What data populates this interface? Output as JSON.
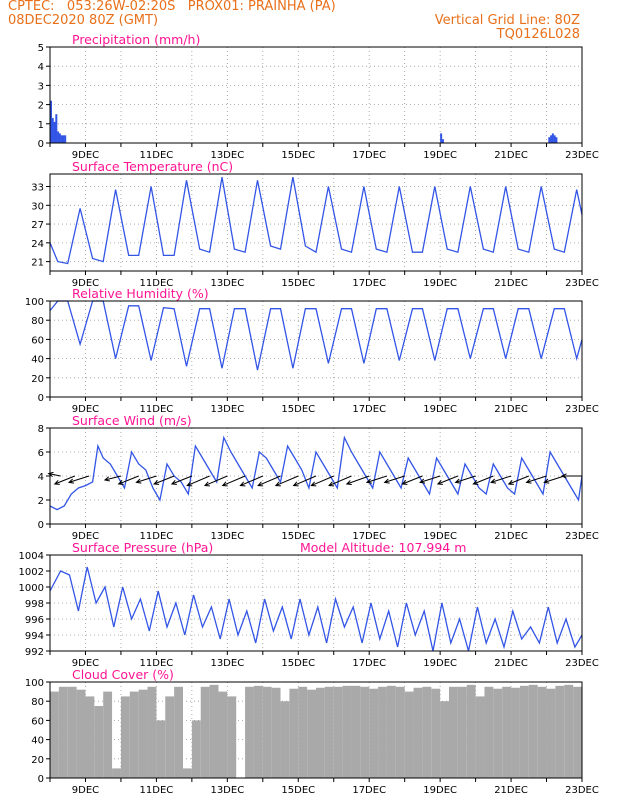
{
  "header": {
    "line1_left": "CPTEC:   053:26W-02:20S   PROX01: PRAINHA (PA)",
    "line2_left": "08DEC2020 80Z (GMT)",
    "line2_right": "Vertical Grid Line: 80Z",
    "line3_right": "TQ0126L028"
  },
  "colors": {
    "header": "#e8701a",
    "title": "#ff1493",
    "series": "#3355e6",
    "cloud": "#a9a9a9",
    "arrow": "#000000"
  },
  "x_ticks": [
    "9DEC",
    "11DEC",
    "13DEC",
    "15DEC",
    "17DEC",
    "19DEC",
    "21DEC",
    "23DEC"
  ],
  "chart_data": [
    {
      "id": "precip",
      "type": "bar",
      "title": "Precipitation (mm/h)",
      "ylim": [
        0,
        5
      ],
      "yticks": [
        "0",
        "1",
        "2",
        "3",
        "4",
        "5"
      ],
      "x_days": [
        8.0,
        8.05,
        8.1,
        8.15,
        8.2,
        8.25,
        8.3,
        8.35,
        8.4,
        19.0,
        19.05,
        22.05,
        22.1,
        22.15,
        22.2,
        22.25
      ],
      "values": [
        2.2,
        1.3,
        1.1,
        1.5,
        0.6,
        0.5,
        0.4,
        0.4,
        0.4,
        0.5,
        0.2,
        0.3,
        0.4,
        0.5,
        0.4,
        0.3
      ]
    },
    {
      "id": "temp",
      "type": "line",
      "title": "Surface Temperature (nC)",
      "ylim": [
        19.5,
        35
      ],
      "yticks": [
        "21",
        "24",
        "27",
        "30",
        "33"
      ],
      "x_days": [
        8.0,
        8.22,
        8.5,
        8.85,
        9.2,
        9.5,
        9.85,
        10.22,
        10.5,
        10.85,
        11.2,
        11.5,
        11.85,
        12.22,
        12.5,
        12.85,
        13.2,
        13.5,
        13.85,
        14.22,
        14.5,
        14.85,
        15.2,
        15.5,
        15.85,
        16.22,
        16.5,
        16.85,
        17.2,
        17.5,
        17.85,
        18.22,
        18.5,
        18.85,
        19.2,
        19.5,
        19.85,
        20.22,
        20.5,
        20.85,
        21.2,
        21.5,
        21.85,
        22.22,
        22.5,
        22.85,
        23.0
      ],
      "values": [
        24,
        21,
        20.7,
        29.5,
        21.5,
        21,
        32.5,
        22,
        22,
        33,
        22,
        22,
        34,
        23,
        22.5,
        34.5,
        23,
        22.5,
        34,
        23.5,
        23,
        34.5,
        23.5,
        22.5,
        33,
        23,
        22.5,
        33,
        23,
        22.5,
        33,
        22.5,
        22.5,
        33,
        23,
        22.5,
        33,
        23,
        22.5,
        33,
        23,
        22.5,
        33,
        23,
        22.5,
        32.5,
        28.5
      ]
    },
    {
      "id": "rh",
      "type": "line",
      "title": "Relative Humidity (%)",
      "ylim": [
        0,
        100
      ],
      "yticks": [
        "0",
        "20",
        "40",
        "60",
        "80",
        "100"
      ],
      "x_days": [
        8.0,
        8.22,
        8.5,
        8.85,
        9.2,
        9.5,
        9.85,
        10.22,
        10.5,
        10.85,
        11.2,
        11.5,
        11.85,
        12.22,
        12.5,
        12.85,
        13.2,
        13.5,
        13.85,
        14.22,
        14.5,
        14.85,
        15.2,
        15.5,
        15.85,
        16.22,
        16.5,
        16.85,
        17.2,
        17.5,
        17.85,
        18.22,
        18.5,
        18.85,
        19.2,
        19.5,
        19.85,
        20.22,
        20.5,
        20.85,
        21.2,
        21.5,
        21.85,
        22.22,
        22.5,
        22.85,
        23.0
      ],
      "values": [
        90,
        100,
        100,
        55,
        100,
        100,
        40,
        95,
        95,
        38,
        93,
        92,
        32,
        92,
        92,
        30,
        92,
        92,
        28,
        92,
        92,
        30,
        92,
        92,
        35,
        92,
        92,
        35,
        92,
        92,
        38,
        92,
        92,
        38,
        92,
        92,
        40,
        92,
        92,
        40,
        92,
        92,
        40,
        92,
        92,
        40,
        60
      ]
    },
    {
      "id": "wind",
      "type": "line",
      "title": "Surface Wind (m/s)",
      "ylim": [
        0,
        8
      ],
      "yticks": [
        "0",
        "2",
        "4",
        "6",
        "8"
      ],
      "x_days": [
        8.0,
        8.2,
        8.4,
        8.6,
        8.8,
        9.0,
        9.2,
        9.35,
        9.5,
        9.7,
        9.9,
        10.1,
        10.3,
        10.5,
        10.7,
        10.9,
        11.1,
        11.3,
        11.5,
        11.7,
        11.9,
        12.1,
        12.3,
        12.5,
        12.7,
        12.9,
        13.1,
        13.3,
        13.5,
        13.7,
        13.9,
        14.1,
        14.3,
        14.5,
        14.7,
        14.9,
        15.1,
        15.3,
        15.5,
        15.7,
        15.9,
        16.1,
        16.3,
        16.5,
        16.7,
        16.9,
        17.1,
        17.3,
        17.5,
        17.7,
        17.9,
        18.1,
        18.3,
        18.5,
        18.7,
        18.9,
        19.1,
        19.3,
        19.5,
        19.7,
        19.9,
        20.1,
        20.3,
        20.5,
        20.7,
        20.9,
        21.1,
        21.3,
        21.5,
        21.7,
        21.9,
        22.1,
        22.3,
        22.5,
        22.7,
        22.9,
        23.0
      ],
      "values": [
        1.5,
        1.2,
        1.5,
        2.5,
        3,
        3.2,
        3.5,
        6.5,
        5.5,
        5,
        4,
        3,
        6,
        5,
        4.5,
        3,
        2,
        5,
        4,
        3.5,
        2.5,
        6.5,
        5.5,
        4.5,
        3.5,
        7.2,
        6,
        5,
        4,
        3,
        6,
        5.5,
        4.5,
        3.5,
        6.5,
        5.5,
        4.5,
        3,
        6,
        5,
        4,
        3,
        7.2,
        6,
        5,
        4,
        3,
        6,
        5,
        4,
        3,
        5.5,
        4.5,
        3.5,
        2.5,
        5.5,
        4.5,
        3.5,
        2.5,
        5,
        4,
        3,
        2.5,
        5,
        4,
        3,
        2.5,
        5.5,
        4.5,
        3.5,
        2.5,
        6,
        5,
        4,
        3,
        2,
        4
      ],
      "vector_days": [
        8.3,
        8.7,
        9.1,
        10.0,
        10.5,
        11.0,
        11.5,
        12.0,
        12.5,
        13.0,
        13.5,
        14.0,
        14.5,
        15.0,
        15.5,
        16.0,
        16.5,
        17.0,
        17.5,
        18.0,
        18.5,
        19.0,
        19.5,
        20.0,
        20.5,
        21.0,
        21.5,
        22.0,
        22.5,
        23.0
      ],
      "vector_u": [
        -1.5,
        -2.5,
        -2.5,
        -2.0,
        -2.5,
        -2.5,
        -2.5,
        -2.5,
        -2.8,
        -2.8,
        -2.8,
        -2.8,
        -2.8,
        -2.8,
        -2.8,
        -2.8,
        -2.8,
        -2.8,
        -2.5,
        -2.5,
        -2.5,
        -2.5,
        -2.5,
        -2.5,
        -2.5,
        -2.5,
        -2.5,
        -2.5,
        -2.5,
        -2.5
      ],
      "vector_v": [
        0.3,
        -1.0,
        -0.8,
        -0.5,
        -1.0,
        -0.8,
        -1.0,
        -1.0,
        -1.2,
        -1.2,
        -1.2,
        -1.2,
        -1.2,
        -1.2,
        -1.2,
        -1.2,
        -1.2,
        -1.0,
        -0.8,
        -0.8,
        -1.0,
        -0.8,
        -1.0,
        -0.8,
        -1.0,
        -0.8,
        -1.0,
        -0.8,
        -0.8,
        0.0
      ]
    },
    {
      "id": "pres",
      "type": "line",
      "title": "Surface Pressure (hPa)",
      "subtitle": "Model Altitude: 107.994 m",
      "ylim": [
        992,
        1004
      ],
      "yticks": [
        "992",
        "994",
        "996",
        "998",
        "1000",
        "1002",
        "1004"
      ],
      "x_days": [
        8.0,
        8.3,
        8.55,
        8.8,
        9.05,
        9.3,
        9.55,
        9.8,
        10.05,
        10.3,
        10.55,
        10.8,
        11.05,
        11.3,
        11.55,
        11.8,
        12.05,
        12.3,
        12.55,
        12.8,
        13.05,
        13.3,
        13.55,
        13.8,
        14.05,
        14.3,
        14.55,
        14.8,
        15.05,
        15.3,
        15.55,
        15.8,
        16.05,
        16.3,
        16.55,
        16.8,
        17.05,
        17.3,
        17.55,
        17.8,
        18.05,
        18.3,
        18.55,
        18.8,
        19.05,
        19.3,
        19.55,
        19.8,
        20.05,
        20.3,
        20.55,
        20.8,
        21.05,
        21.3,
        21.55,
        21.8,
        22.05,
        22.3,
        22.55,
        22.8,
        23.0
      ],
      "values": [
        999.5,
        1002,
        1001.5,
        997,
        1002.5,
        998,
        1000,
        995,
        1000,
        996,
        998.5,
        994.5,
        999.5,
        995,
        998,
        994,
        999,
        995,
        997.5,
        993.5,
        998.5,
        994,
        997,
        993,
        998.5,
        994.5,
        997.5,
        993.5,
        998.5,
        994,
        997.5,
        993,
        998.5,
        995,
        997.5,
        993,
        998,
        993.5,
        997,
        992.5,
        998,
        994,
        997,
        992,
        998,
        993,
        996,
        992,
        997.5,
        993,
        996,
        992.5,
        997,
        993.5,
        995,
        993,
        997.5,
        993,
        996,
        992.5,
        994
      ]
    },
    {
      "id": "cloud",
      "type": "bar",
      "title": "Cloud Cover (%)",
      "ylim": [
        0,
        100
      ],
      "yticks": [
        "0",
        "20",
        "40",
        "60",
        "80",
        "100"
      ],
      "x_days": [
        8.0,
        8.25,
        8.5,
        8.75,
        9.0,
        9.25,
        9.5,
        9.75,
        10.0,
        10.25,
        10.5,
        10.75,
        11.0,
        11.25,
        11.5,
        11.75,
        12.0,
        12.25,
        12.5,
        12.75,
        13.0,
        13.25,
        13.5,
        13.75,
        14.0,
        14.25,
        14.5,
        14.75,
        15.0,
        15.25,
        15.5,
        15.75,
        16.0,
        16.25,
        16.5,
        16.75,
        17.0,
        17.25,
        17.5,
        17.75,
        18.0,
        18.25,
        18.5,
        18.75,
        19.0,
        19.25,
        19.5,
        19.75,
        20.0,
        20.25,
        20.5,
        20.75,
        21.0,
        21.25,
        21.5,
        21.75,
        22.0,
        22.25,
        22.5,
        22.75,
        23.0
      ],
      "values": [
        90,
        95,
        95,
        92,
        85,
        75,
        90,
        10,
        85,
        90,
        92,
        95,
        60,
        85,
        95,
        10,
        60,
        95,
        97,
        90,
        85,
        0,
        95,
        96,
        95,
        94,
        80,
        93,
        95,
        92,
        94,
        95,
        95,
        96,
        96,
        95,
        93,
        95,
        96,
        95,
        90,
        94,
        95,
        93,
        80,
        95,
        95,
        97,
        85,
        95,
        93,
        95,
        94,
        96,
        97,
        95,
        93,
        96,
        97,
        95,
        95
      ]
    }
  ]
}
